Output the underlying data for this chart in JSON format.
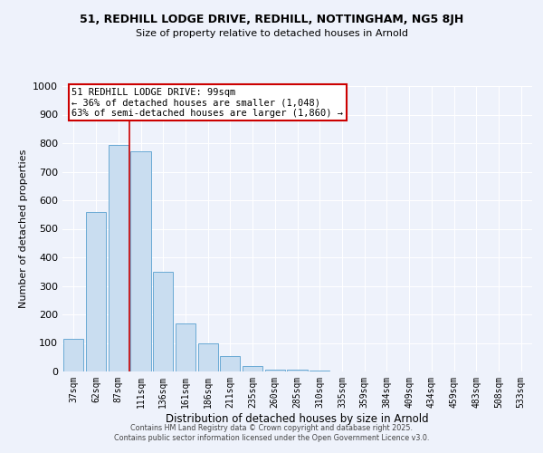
{
  "title": "51, REDHILL LODGE DRIVE, REDHILL, NOTTINGHAM, NG5 8JH",
  "subtitle": "Size of property relative to detached houses in Arnold",
  "xlabel": "Distribution of detached houses by size in Arnold",
  "ylabel": "Number of detached properties",
  "bar_color": "#c9ddf0",
  "bar_edge_color": "#6aaad4",
  "background_color": "#eef2fb",
  "plot_background_color": "#eef2fb",
  "grid_color": "#ffffff",
  "categories": [
    "37sqm",
    "62sqm",
    "87sqm",
    "111sqm",
    "136sqm",
    "161sqm",
    "186sqm",
    "211sqm",
    "235sqm",
    "260sqm",
    "285sqm",
    "310sqm",
    "335sqm",
    "359sqm",
    "384sqm",
    "409sqm",
    "434sqm",
    "459sqm",
    "483sqm",
    "508sqm",
    "533sqm"
  ],
  "values": [
    115,
    560,
    795,
    770,
    350,
    168,
    100,
    55,
    18,
    5,
    7,
    2,
    0,
    0,
    0,
    0,
    0,
    0,
    0,
    0,
    0
  ],
  "ylim": [
    0,
    1000
  ],
  "yticks": [
    0,
    100,
    200,
    300,
    400,
    500,
    600,
    700,
    800,
    900,
    1000
  ],
  "red_line_x": 2.5,
  "annotation_text_line1": "51 REDHILL LODGE DRIVE: 99sqm",
  "annotation_text_line2": "← 36% of detached houses are smaller (1,048)",
  "annotation_text_line3": "63% of semi-detached houses are larger (1,860) →",
  "annotation_box_color": "#ffffff",
  "annotation_box_edge": "#cc0000",
  "red_line_color": "#cc0000",
  "footer_line1": "Contains HM Land Registry data © Crown copyright and database right 2025.",
  "footer_line2": "Contains public sector information licensed under the Open Government Licence v3.0."
}
